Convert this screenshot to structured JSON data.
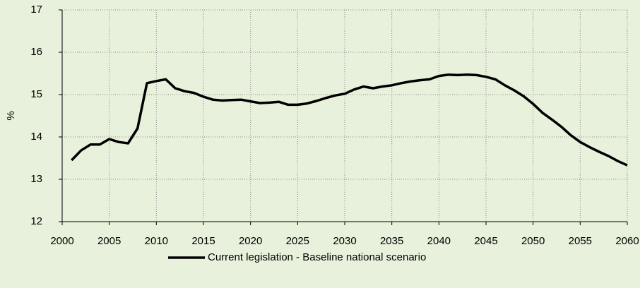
{
  "chart_data": {
    "type": "line",
    "y_label": "%",
    "x": [
      2001,
      2002,
      2003,
      2004,
      2005,
      2006,
      2007,
      2008,
      2009,
      2010,
      2011,
      2012,
      2013,
      2014,
      2015,
      2016,
      2017,
      2018,
      2019,
      2020,
      2021,
      2022,
      2023,
      2024,
      2025,
      2026,
      2027,
      2028,
      2029,
      2030,
      2031,
      2032,
      2033,
      2034,
      2035,
      2036,
      2037,
      2038,
      2039,
      2040,
      2041,
      2042,
      2043,
      2044,
      2045,
      2046,
      2047,
      2048,
      2049,
      2050,
      2051,
      2052,
      2053,
      2054,
      2055,
      2056,
      2057,
      2058,
      2059,
      2060
    ],
    "series": [
      {
        "name": "Current legislation - Baseline national scenario",
        "color": "#000000",
        "values": [
          13.45,
          13.68,
          13.82,
          13.82,
          13.95,
          13.88,
          13.85,
          14.2,
          15.27,
          15.32,
          15.36,
          15.15,
          15.08,
          15.04,
          14.95,
          14.88,
          14.86,
          14.87,
          14.88,
          14.84,
          14.8,
          14.81,
          14.83,
          14.76,
          14.76,
          14.79,
          14.85,
          14.92,
          14.98,
          15.02,
          15.12,
          15.19,
          15.15,
          15.19,
          15.22,
          15.27,
          15.31,
          15.34,
          15.36,
          15.44,
          15.47,
          15.46,
          15.47,
          15.46,
          15.42,
          15.36,
          15.22,
          15.1,
          14.96,
          14.78,
          14.57,
          14.41,
          14.24,
          14.04,
          13.88,
          13.76,
          13.65,
          13.55,
          13.43,
          13.33
        ]
      }
    ],
    "xlim": [
      2000,
      2060
    ],
    "xticks": [
      2000,
      2005,
      2010,
      2015,
      2020,
      2025,
      2030,
      2035,
      2040,
      2045,
      2050,
      2055,
      2060
    ],
    "ylim": [
      12,
      17
    ],
    "yticks": [
      12,
      13,
      14,
      15,
      16,
      17
    ],
    "grid": true,
    "legend": "bottom"
  }
}
